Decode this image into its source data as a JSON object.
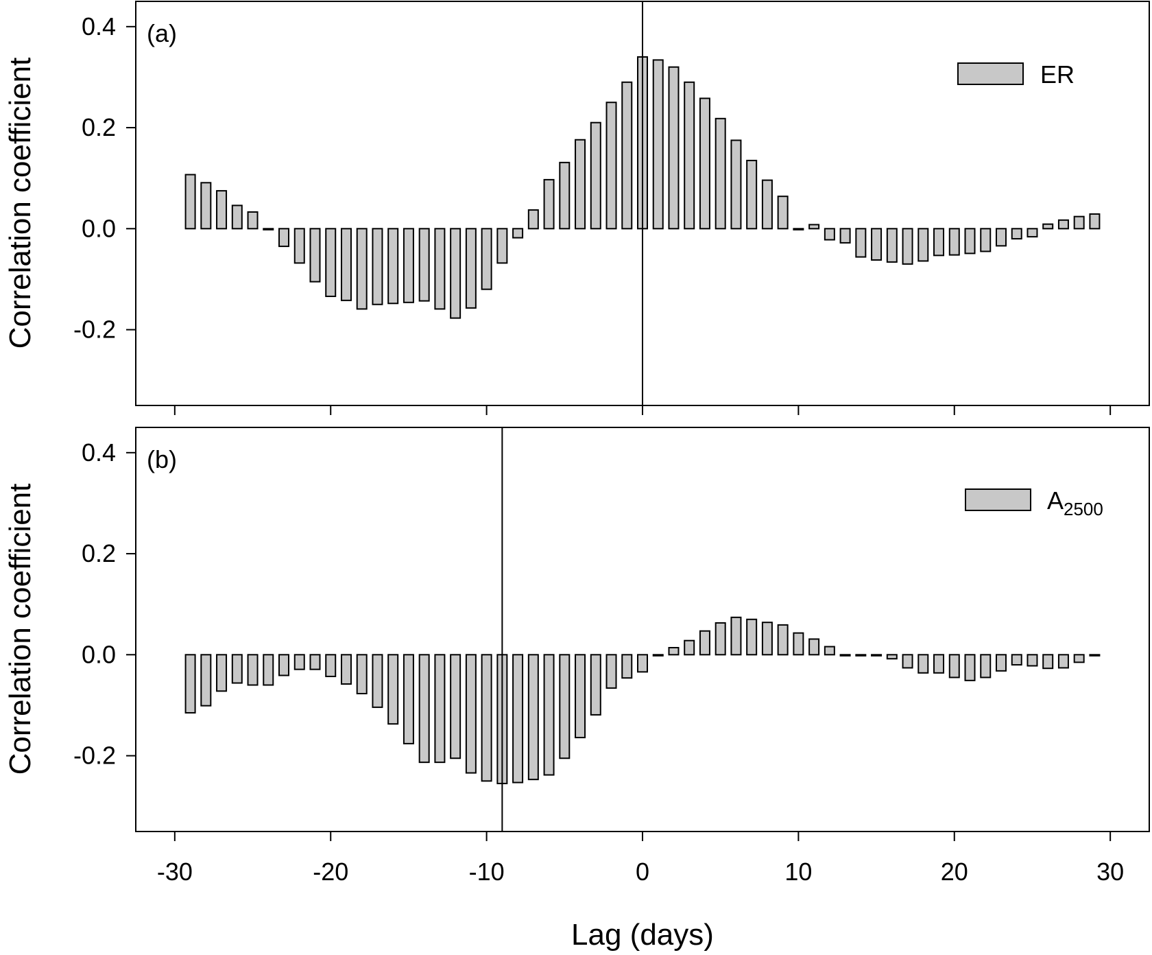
{
  "figure": {
    "x_axis_label": "Lag (days)",
    "x_ticks": [
      "-30",
      "-20",
      "-10",
      "0",
      "10",
      "20",
      "30"
    ]
  },
  "chart_data": [
    {
      "type": "bar",
      "panel_label": "(a)",
      "ylabel": "Correlation coefficient",
      "y_ticks": [
        "0.4",
        "0.2",
        "0.0",
        "-0.2"
      ],
      "xlim": [
        -32.5,
        32.5
      ],
      "ylim": [
        -0.35,
        0.45
      ],
      "grid": false,
      "legend_position": "top-right",
      "reference_line_x": 0,
      "series": [
        {
          "name": "ER",
          "x": [
            -29,
            -28,
            -27,
            -26,
            -25,
            -24,
            -23,
            -22,
            -21,
            -20,
            -19,
            -18,
            -17,
            -16,
            -15,
            -14,
            -13,
            -12,
            -11,
            -10,
            -9,
            -8,
            -7,
            -6,
            -5,
            -4,
            -3,
            -2,
            -1,
            0,
            1,
            2,
            3,
            4,
            5,
            6,
            7,
            8,
            9,
            10,
            11,
            12,
            13,
            14,
            15,
            16,
            17,
            18,
            19,
            20,
            21,
            22,
            23,
            24,
            25,
            26,
            27,
            28,
            29
          ],
          "values": [
            0.107,
            0.091,
            0.075,
            0.046,
            0.033,
            -0.002,
            -0.035,
            -0.068,
            -0.105,
            -0.134,
            -0.142,
            -0.159,
            -0.15,
            -0.148,
            -0.146,
            -0.143,
            -0.159,
            -0.177,
            -0.157,
            -0.12,
            -0.068,
            -0.018,
            0.037,
            0.097,
            0.131,
            0.176,
            0.21,
            0.25,
            0.29,
            0.34,
            0.334,
            0.32,
            0.29,
            0.258,
            0.218,
            0.175,
            0.135,
            0.096,
            0.064,
            0.0,
            0.008,
            -0.022,
            -0.028,
            -0.056,
            -0.062,
            -0.066,
            -0.07,
            -0.064,
            -0.053,
            -0.052,
            -0.049,
            -0.045,
            -0.034,
            -0.02,
            -0.016,
            0.009,
            0.017,
            0.024,
            0.029
          ]
        }
      ]
    },
    {
      "type": "bar",
      "panel_label": "(b)",
      "ylabel": "Correlation coefficient",
      "y_ticks": [
        "0.4",
        "0.2",
        "0.0",
        "-0.2"
      ],
      "xlim": [
        -32.5,
        32.5
      ],
      "ylim": [
        -0.35,
        0.45
      ],
      "grid": false,
      "legend_position": "top-right",
      "reference_line_x": -9,
      "series": [
        {
          "name": "A",
          "name_subscript": "2500",
          "x": [
            -29,
            -28,
            -27,
            -26,
            -25,
            -24,
            -23,
            -22,
            -21,
            -20,
            -19,
            -18,
            -17,
            -16,
            -15,
            -14,
            -13,
            -12,
            -11,
            -10,
            -9,
            -8,
            -7,
            -6,
            -5,
            -4,
            -3,
            -2,
            -1,
            0,
            1,
            2,
            3,
            4,
            5,
            6,
            7,
            8,
            9,
            10,
            11,
            12,
            13,
            14,
            15,
            16,
            17,
            18,
            19,
            20,
            21,
            22,
            23,
            24,
            25,
            26,
            27,
            28,
            29
          ],
          "values": [
            -0.115,
            -0.101,
            -0.072,
            -0.056,
            -0.06,
            -0.06,
            -0.041,
            -0.029,
            -0.029,
            -0.043,
            -0.058,
            -0.077,
            -0.104,
            -0.137,
            -0.176,
            -0.213,
            -0.213,
            -0.205,
            -0.234,
            -0.25,
            -0.255,
            -0.253,
            -0.247,
            -0.238,
            -0.205,
            -0.164,
            -0.119,
            -0.066,
            -0.046,
            -0.034,
            0.0,
            0.014,
            0.028,
            0.047,
            0.063,
            0.074,
            0.07,
            0.064,
            0.059,
            0.043,
            0.031,
            0.016,
            0.0,
            0.0,
            0.0,
            -0.008,
            -0.026,
            -0.036,
            -0.036,
            -0.045,
            -0.051,
            -0.045,
            -0.032,
            -0.02,
            -0.022,
            -0.027,
            -0.026,
            -0.015,
            0.0
          ]
        }
      ]
    }
  ]
}
